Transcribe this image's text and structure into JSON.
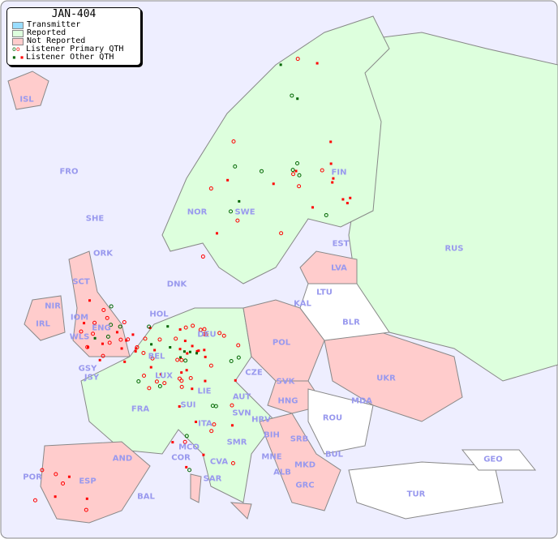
{
  "legend": {
    "title": "JAN-404",
    "items": [
      {
        "label": "Transmitter",
        "color": "#99ddff"
      },
      {
        "label": "Reported",
        "color": "#ddffdd"
      },
      {
        "label": "Not Reported",
        "color": "#ffcccc"
      },
      {
        "label": "Listener Primary QTH",
        "symbol": "circle"
      },
      {
        "label": "Listener Other QTH",
        "symbol": "square"
      }
    ]
  },
  "colors": {
    "sea": "#eeeeff",
    "reported": "#ddffdd",
    "not_reported": "#ffcccc",
    "neutral": "#ffffff",
    "label": "#9999ee",
    "dot_red": "#ff0000",
    "dot_green": "#006600"
  },
  "countries": [
    "ISL",
    "FRO",
    "SHE",
    "ORK",
    "NOR",
    "SWE",
    "FIN",
    "EST",
    "RUS",
    "LVA",
    "LTU",
    "KAL",
    "BLR",
    "DNK",
    "HOL",
    "DEU",
    "POL",
    "SCT",
    "NIR",
    "IRL",
    "IOM",
    "WLS",
    "ENG",
    "GSY",
    "JSY",
    "BEL",
    "LUX",
    "FRA",
    "SUI",
    "LIE",
    "AUT",
    "CZE",
    "SVK",
    "HNG",
    "UKR",
    "MDA",
    "ROU",
    "SVN",
    "HRV",
    "BIH",
    "SRB",
    "MNE",
    "ALB",
    "MKD",
    "BUL",
    "GRC",
    "TUR",
    "GEO",
    "ITA",
    "MCO",
    "COR",
    "CVA",
    "SMR",
    "SAR",
    "AND",
    "ESP",
    "POR",
    "BAL"
  ]
}
